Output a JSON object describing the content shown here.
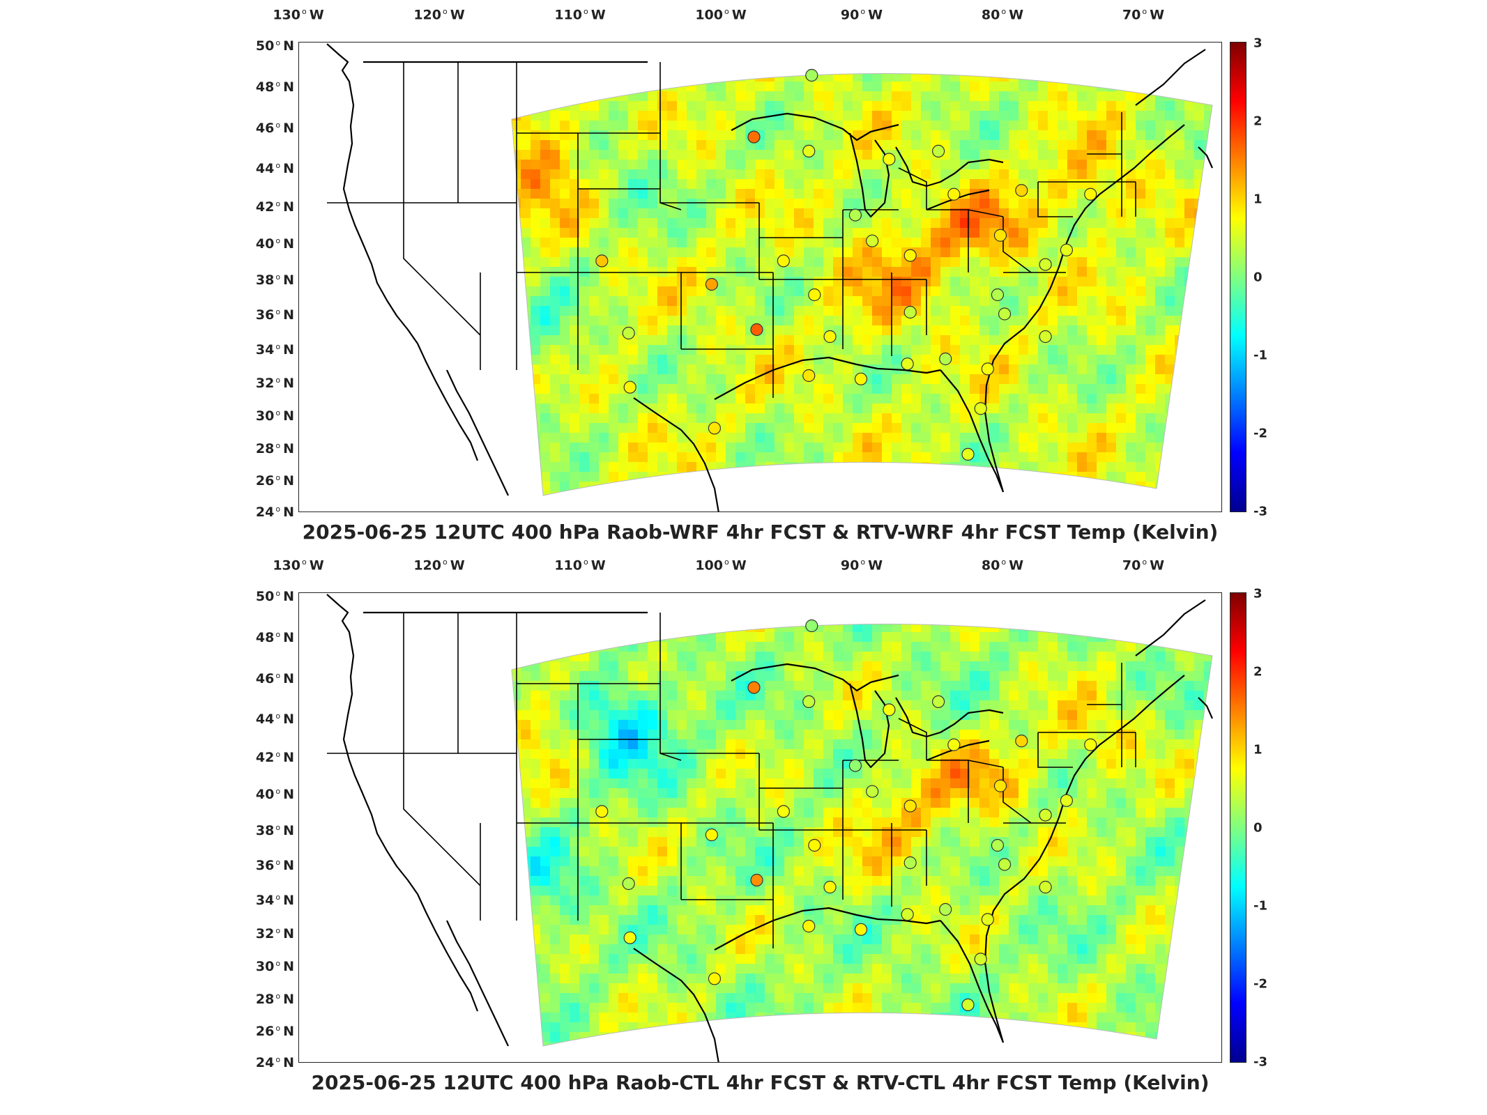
{
  "lon_labels": [
    "130",
    "120",
    "110",
    "100",
    "90",
    "80",
    "70"
  ],
  "lon_suffix": "W",
  "lat_labels": [
    "50",
    "48",
    "46",
    "44",
    "42",
    "40",
    "38",
    "36",
    "34",
    "32",
    "30",
    "28",
    "26",
    "24"
  ],
  "lat_suffix": "N",
  "colorbar_ticks": [
    "3",
    "2",
    "1",
    "0",
    "-1",
    "-2",
    "-3"
  ],
  "colorbar_range": [
    -3,
    3
  ],
  "colors": {
    "cool": "#3fd6d0",
    "neutral": "#b9f05a",
    "warm_yellow": "#f6ee3a",
    "warm_orange": "#f4a020",
    "hot": "#e2431a",
    "coastline": "#000000"
  },
  "panels": [
    {
      "title": "2025-06-25 12UTC 400 hPa Raob-WRF 4hr FCST & RTV-WRF 4hr FCST Temp (Kelvin)",
      "field_bias": 0.45,
      "stations": [
        {
          "lon": -93.6,
          "lat": 48.6,
          "value": 0.2
        },
        {
          "lon": -97.7,
          "lat": 45.6,
          "value": 1.6
        },
        {
          "lon": -93.8,
          "lat": 44.9,
          "value": 0.6
        },
        {
          "lon": -88.1,
          "lat": 44.5,
          "value": 0.7
        },
        {
          "lon": -84.6,
          "lat": 44.9,
          "value": 0.4
        },
        {
          "lon": -90.5,
          "lat": 41.6,
          "value": 0.3
        },
        {
          "lon": -83.5,
          "lat": 42.7,
          "value": 0.8
        },
        {
          "lon": -78.7,
          "lat": 42.9,
          "value": 1.0
        },
        {
          "lon": -73.8,
          "lat": 42.7,
          "value": 0.8
        },
        {
          "lon": -89.3,
          "lat": 40.2,
          "value": 0.5
        },
        {
          "lon": -86.6,
          "lat": 39.4,
          "value": 0.8
        },
        {
          "lon": -80.2,
          "lat": 40.5,
          "value": 0.9
        },
        {
          "lon": -108.5,
          "lat": 39.1,
          "value": 1.1
        },
        {
          "lon": -100.7,
          "lat": 37.8,
          "value": 1.3
        },
        {
          "lon": -95.6,
          "lat": 39.1,
          "value": 0.8
        },
        {
          "lon": -93.4,
          "lat": 37.2,
          "value": 0.8
        },
        {
          "lon": -86.6,
          "lat": 36.2,
          "value": 0.4
        },
        {
          "lon": -80.4,
          "lat": 37.2,
          "value": 0.3
        },
        {
          "lon": -77.0,
          "lat": 38.9,
          "value": 0.5
        },
        {
          "lon": -75.5,
          "lat": 39.7,
          "value": 0.6
        },
        {
          "lon": -97.5,
          "lat": 35.2,
          "value": 1.7
        },
        {
          "lon": -106.6,
          "lat": 35.0,
          "value": 0.4
        },
        {
          "lon": -92.3,
          "lat": 34.8,
          "value": 0.8
        },
        {
          "lon": -79.9,
          "lat": 36.1,
          "value": 0.4
        },
        {
          "lon": -86.8,
          "lat": 33.2,
          "value": 0.6
        },
        {
          "lon": -84.1,
          "lat": 33.5,
          "value": 0.3
        },
        {
          "lon": -77.0,
          "lat": 34.8,
          "value": 0.5
        },
        {
          "lon": -81.1,
          "lat": 32.9,
          "value": 0.7
        },
        {
          "lon": -93.8,
          "lat": 32.5,
          "value": 0.9
        },
        {
          "lon": -90.1,
          "lat": 32.3,
          "value": 0.8
        },
        {
          "lon": -106.5,
          "lat": 31.8,
          "value": 0.8
        },
        {
          "lon": -100.5,
          "lat": 29.3,
          "value": 0.9
        },
        {
          "lon": -81.6,
          "lat": 30.5,
          "value": 0.6
        },
        {
          "lon": -82.5,
          "lat": 27.7,
          "value": 0.6
        }
      ]
    },
    {
      "title": "2025-06-25 12UTC 400 hPa Raob-CTL 4hr FCST & RTV-CTL 4hr FCST Temp (Kelvin)",
      "field_bias": 0.25,
      "stations": [
        {
          "lon": -93.6,
          "lat": 48.6,
          "value": 0.1
        },
        {
          "lon": -97.7,
          "lat": 45.6,
          "value": 1.5
        },
        {
          "lon": -93.8,
          "lat": 44.9,
          "value": 0.4
        },
        {
          "lon": -88.1,
          "lat": 44.5,
          "value": 0.7
        },
        {
          "lon": -84.6,
          "lat": 44.9,
          "value": 0.4
        },
        {
          "lon": -90.5,
          "lat": 41.6,
          "value": 0.1
        },
        {
          "lon": -83.5,
          "lat": 42.7,
          "value": 0.7
        },
        {
          "lon": -78.7,
          "lat": 42.9,
          "value": 1.0
        },
        {
          "lon": -73.8,
          "lat": 42.7,
          "value": 0.7
        },
        {
          "lon": -89.3,
          "lat": 40.2,
          "value": 0.4
        },
        {
          "lon": -86.6,
          "lat": 39.4,
          "value": 0.9
        },
        {
          "lon": -80.2,
          "lat": 40.5,
          "value": 0.9
        },
        {
          "lon": -108.5,
          "lat": 39.1,
          "value": 0.8
        },
        {
          "lon": -100.7,
          "lat": 37.8,
          "value": 0.8
        },
        {
          "lon": -95.6,
          "lat": 39.1,
          "value": 0.7
        },
        {
          "lon": -93.4,
          "lat": 37.2,
          "value": 0.8
        },
        {
          "lon": -86.6,
          "lat": 36.2,
          "value": 0.3
        },
        {
          "lon": -80.4,
          "lat": 37.2,
          "value": 0.3
        },
        {
          "lon": -77.0,
          "lat": 38.9,
          "value": 0.5
        },
        {
          "lon": -75.5,
          "lat": 39.7,
          "value": 0.6
        },
        {
          "lon": -97.5,
          "lat": 35.2,
          "value": 1.4
        },
        {
          "lon": -106.6,
          "lat": 35.0,
          "value": 0.3
        },
        {
          "lon": -92.3,
          "lat": 34.8,
          "value": 0.8
        },
        {
          "lon": -79.9,
          "lat": 36.1,
          "value": 0.4
        },
        {
          "lon": -86.8,
          "lat": 33.2,
          "value": 0.5
        },
        {
          "lon": -84.1,
          "lat": 33.5,
          "value": 0.3
        },
        {
          "lon": -77.0,
          "lat": 34.8,
          "value": 0.5
        },
        {
          "lon": -81.1,
          "lat": 32.9,
          "value": 0.6
        },
        {
          "lon": -93.8,
          "lat": 32.5,
          "value": 0.8
        },
        {
          "lon": -90.1,
          "lat": 32.3,
          "value": 0.8
        },
        {
          "lon": -106.5,
          "lat": 31.8,
          "value": 0.7
        },
        {
          "lon": -100.5,
          "lat": 29.3,
          "value": 0.8
        },
        {
          "lon": -81.6,
          "lat": 30.5,
          "value": 0.5
        },
        {
          "lon": -82.5,
          "lat": 27.7,
          "value": 0.5
        }
      ]
    }
  ]
}
